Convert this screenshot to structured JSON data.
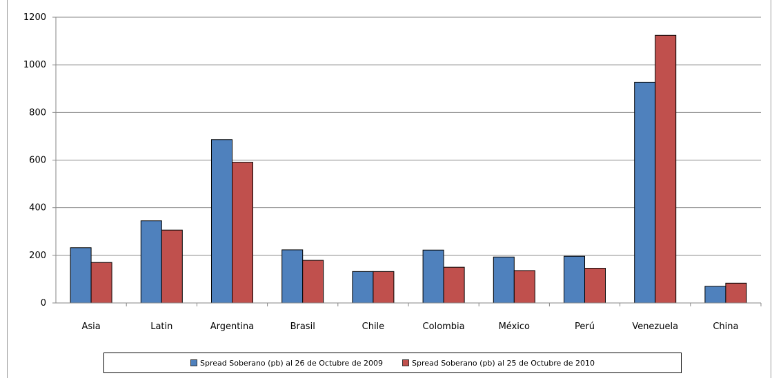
{
  "chart_data": {
    "type": "bar",
    "title": "",
    "xlabel": "",
    "ylabel": "",
    "categories": [
      "Asia",
      "Latin",
      "Argentina",
      "Brasil",
      "Chile",
      "Colombia",
      "México",
      "Perú",
      "Venezuela",
      "China"
    ],
    "series": [
      {
        "name": "Spread Soberano (pb) al 26 de Octubre de 2009",
        "color": "#4f81bd",
        "values": [
          232,
          345,
          686,
          223,
          132,
          222,
          193,
          196,
          927,
          70
        ]
      },
      {
        "name": "Spread Soberano (pb) al 25 de Octubre de 2010",
        "color": "#c0504d",
        "values": [
          170,
          306,
          591,
          179,
          132,
          150,
          136,
          146,
          1124,
          83
        ]
      }
    ],
    "ylim": [
      0,
      1200
    ],
    "yticks": [
      0,
      200,
      400,
      600,
      800,
      1000,
      1200
    ],
    "grid": true,
    "legend_position": "bottom"
  }
}
